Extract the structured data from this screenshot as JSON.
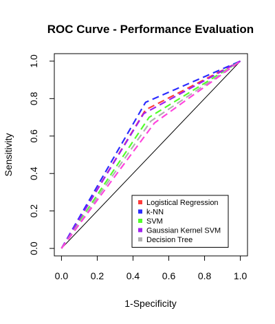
{
  "chart_data": {
    "type": "line",
    "title": "ROC Curve - Performance Evaluation",
    "xlabel": "1-Specificity",
    "ylabel": "Sensitivity",
    "xlim": [
      -0.04,
      1.04
    ],
    "ylim": [
      -0.04,
      1.04
    ],
    "xticks": [
      "0.0",
      "0.2",
      "0.4",
      "0.6",
      "0.8",
      "1.0"
    ],
    "yticks": [
      "0.0",
      "0.2",
      "0.4",
      "0.6",
      "0.8",
      "1.0"
    ],
    "grid": false,
    "legend_position": "bottom-right",
    "reference_line": {
      "x": [
        0,
        1
      ],
      "y": [
        0,
        1
      ],
      "color": "#000000"
    },
    "series": [
      {
        "name": "Logistical Regression",
        "color": "#ff3b3b",
        "x": [
          0,
          0.47,
          1
        ],
        "y": [
          0,
          0.74,
          1
        ]
      },
      {
        "name": "k-NN",
        "color": "#2b2bff",
        "x": [
          0,
          0.47,
          1
        ],
        "y": [
          0,
          0.78,
          1
        ]
      },
      {
        "name": "SVM",
        "color": "#52ff2a",
        "x": [
          0,
          0.49,
          1
        ],
        "y": [
          0,
          0.7,
          1
        ]
      },
      {
        "name": "Gaussian Kernel SVM",
        "color": "#a020f0",
        "x": [
          0,
          0.46,
          1
        ],
        "y": [
          0,
          0.72,
          1
        ]
      },
      {
        "name": "Decision Tree",
        "color": "#b0b0b0",
        "x": [
          0,
          0.5,
          1
        ],
        "y": [
          0,
          0.68,
          1
        ]
      },
      {
        "name": "",
        "color": "#ff44dd",
        "x": [
          0,
          0.52,
          1
        ],
        "y": [
          0,
          0.67,
          1
        ]
      }
    ]
  }
}
